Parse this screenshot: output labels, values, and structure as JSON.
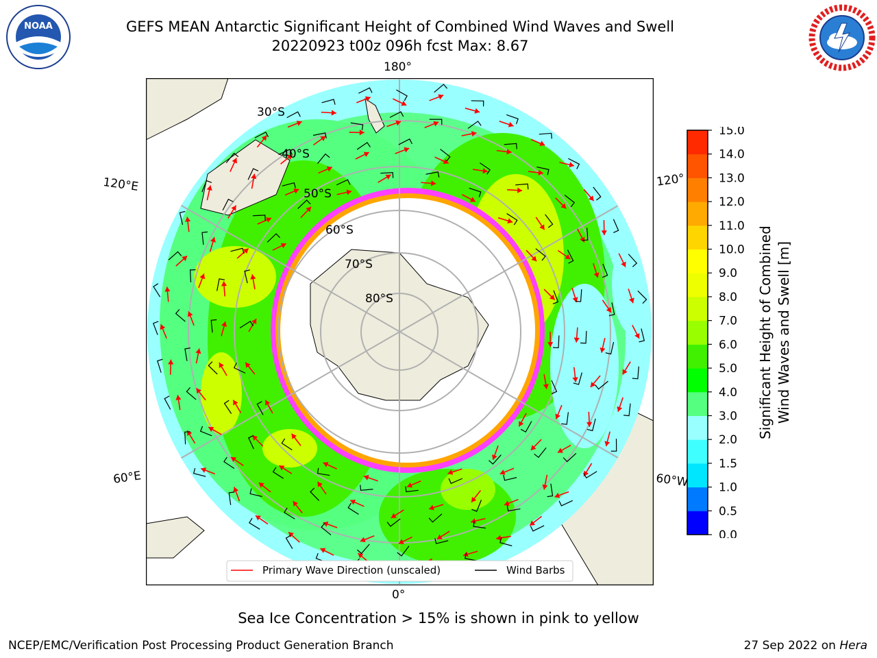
{
  "header": {
    "title_line1": "GEFS MEAN Antarctic Significant Height of Combined Wind Waves and Swell",
    "title_line2": "20220923 t00z 096h fcst   Max: 8.67"
  },
  "logos": {
    "left": {
      "icon": "noaa-logo",
      "text": "NOAA"
    },
    "right": {
      "icon": "nws-logo",
      "text": "NATIONAL WEATHER SERVICE"
    }
  },
  "map": {
    "projection": "south-polar-stereographic",
    "longitude_labels": [
      "180°",
      "120°E",
      "120°",
      "60°E",
      "60°W",
      "0°"
    ],
    "latitude_labels": [
      "30°S",
      "40°S",
      "50°S",
      "60°S",
      "70°S",
      "80°S"
    ],
    "legend": {
      "primary_wave": "Primary Wave Direction (unscaled)",
      "wind_barbs": "Wind Barbs"
    },
    "colors": {
      "land": "#eeecdc",
      "ice_edge": "#ff40ff",
      "ice_inner": "#ffa500",
      "arrow": "#ff0000",
      "barb": "#000000"
    }
  },
  "colorbar": {
    "label_line1": "Significant Height of Combined",
    "label_line2": "Wind Waves and Swell [m]",
    "ticks": [
      "0.0",
      "0.5",
      "1.0",
      "1.5",
      "2.0",
      "3.0",
      "4.0",
      "5.0",
      "6.0",
      "7.0",
      "8.0",
      "9.0",
      "10.0",
      "11.0",
      "12.0",
      "13.0",
      "14.0",
      "15.0"
    ],
    "colors": [
      "#0000ff",
      "#007bff",
      "#00e6ff",
      "#40ffff",
      "#99ffff",
      "#55ff80",
      "#00ff00",
      "#40f000",
      "#99ff00",
      "#ccff00",
      "#eeff00",
      "#ffff00",
      "#ffd500",
      "#ffaa00",
      "#ff8000",
      "#ff5500",
      "#ff2a00"
    ]
  },
  "footer": {
    "note": "Sea Ice Concentration > 15% is shown in pink to yellow",
    "left": "NCEP/EMC/Verification Post Processing Product Generation Branch",
    "right_date": "27 Sep 2022 on ",
    "right_machine": "Hera"
  }
}
